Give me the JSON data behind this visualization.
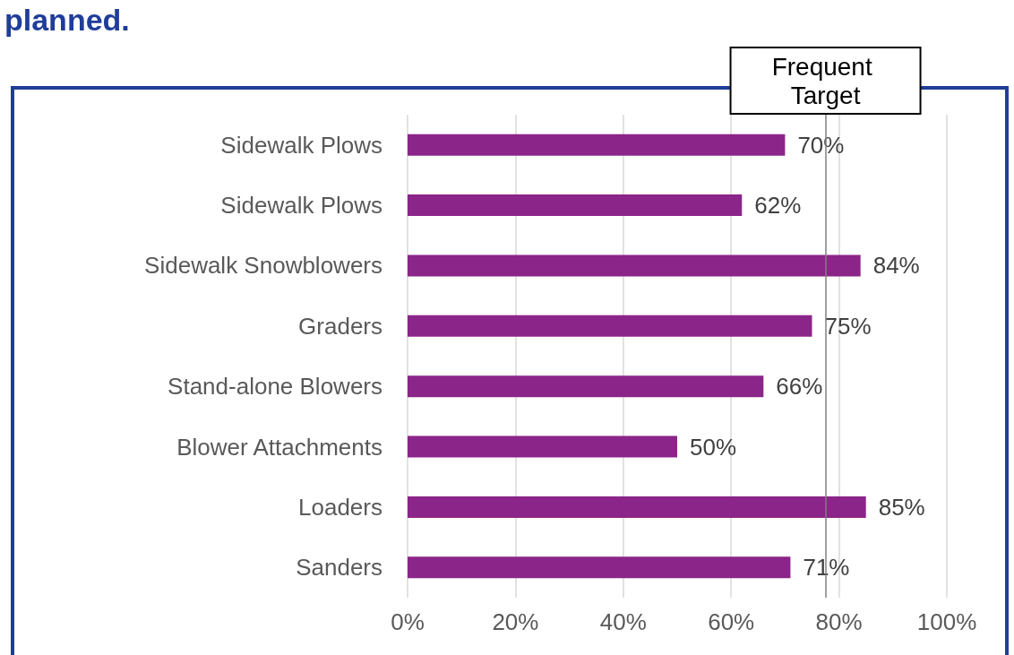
{
  "chart_data": {
    "type": "bar",
    "orientation": "horizontal",
    "title": "planned.",
    "categories": [
      "Sidewalk Plows",
      "Sidewalk Plows",
      "Sidewalk Snowblowers",
      "Graders",
      "Stand-alone Blowers",
      "Blower Attachments",
      "Loaders",
      "Sanders"
    ],
    "values": [
      70,
      62,
      84,
      75,
      66,
      50,
      85,
      71
    ],
    "color": "#8b2589",
    "value_labels": [
      "70%",
      "62%",
      "84%",
      "75%",
      "66%",
      "50%",
      "85%",
      "71%"
    ],
    "xlim": [
      0,
      100
    ],
    "xticks": [
      {
        "value": 0,
        "label": "0%"
      },
      {
        "value": 20,
        "label": "20%"
      },
      {
        "value": 40,
        "label": "40%"
      },
      {
        "value": 60,
        "label": "60%"
      },
      {
        "value": 80,
        "label": "80%"
      },
      {
        "value": 100,
        "label": "100%"
      }
    ],
    "grid": "x",
    "ref_lines": [
      {
        "axis": "x",
        "value": 77.5,
        "label": "Frequent Target",
        "color": "#808080"
      }
    ]
  }
}
